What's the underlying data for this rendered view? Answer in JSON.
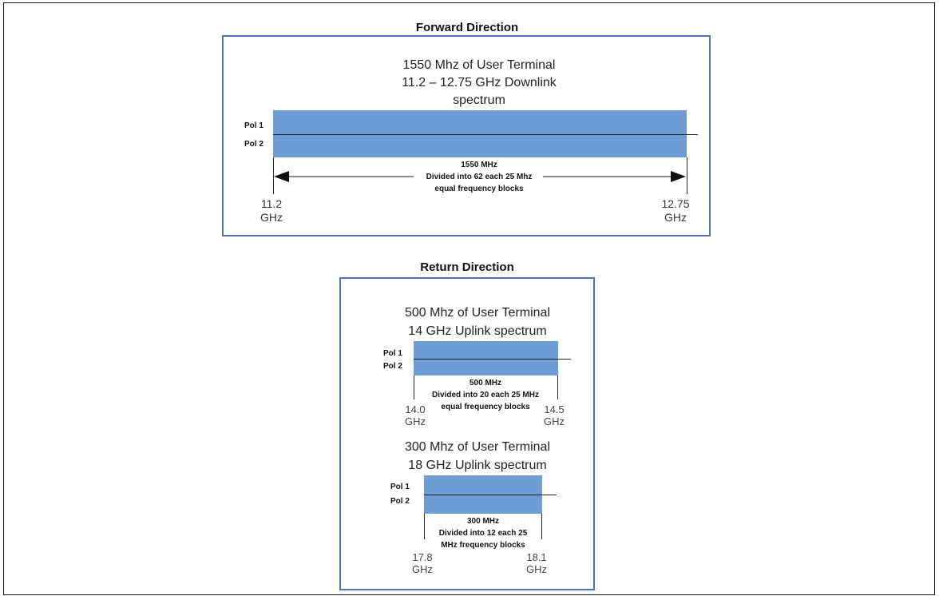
{
  "forward": {
    "title": "Forward Direction",
    "header_lines": [
      "1550 Mhz of User Terminal",
      "11.2 – 12.75 GHz Downlink",
      "spectrum"
    ],
    "pol1": "Pol 1",
    "pol2": "Pol 2",
    "caption": [
      "1550 MHz",
      "Divided into 62 each 25 Mhz",
      "equal frequency blocks"
    ],
    "left_freq": [
      "11.2",
      "GHz"
    ],
    "right_freq": [
      "12.75",
      "GHz"
    ]
  },
  "return": {
    "title": "Return Direction",
    "uplink14": {
      "header_lines": [
        "500 Mhz of User Terminal",
        "14 GHz Uplink spectrum"
      ],
      "pol1": "Pol 1",
      "pol2": "Pol 2",
      "caption": [
        "500 MHz",
        "Divided into 20 each 25 MHz",
        "equal frequency blocks"
      ],
      "left_freq": [
        "14.0",
        "GHz"
      ],
      "right_freq": [
        "14.5",
        "GHz"
      ]
    },
    "uplink18": {
      "header_lines": [
        "300 Mhz of User Terminal",
        "18 GHz Uplink spectrum"
      ],
      "pol1": "Pol 1",
      "pol2": "Pol 2",
      "caption": [
        "300 MHz",
        "Divided into 12 each 25",
        "MHz  frequency blocks"
      ],
      "left_freq": [
        "17.8",
        "GHz"
      ],
      "right_freq": [
        "18.1",
        "GHz"
      ]
    }
  },
  "colors": {
    "border": "#4f73b5",
    "band": "#6d9dd4"
  }
}
